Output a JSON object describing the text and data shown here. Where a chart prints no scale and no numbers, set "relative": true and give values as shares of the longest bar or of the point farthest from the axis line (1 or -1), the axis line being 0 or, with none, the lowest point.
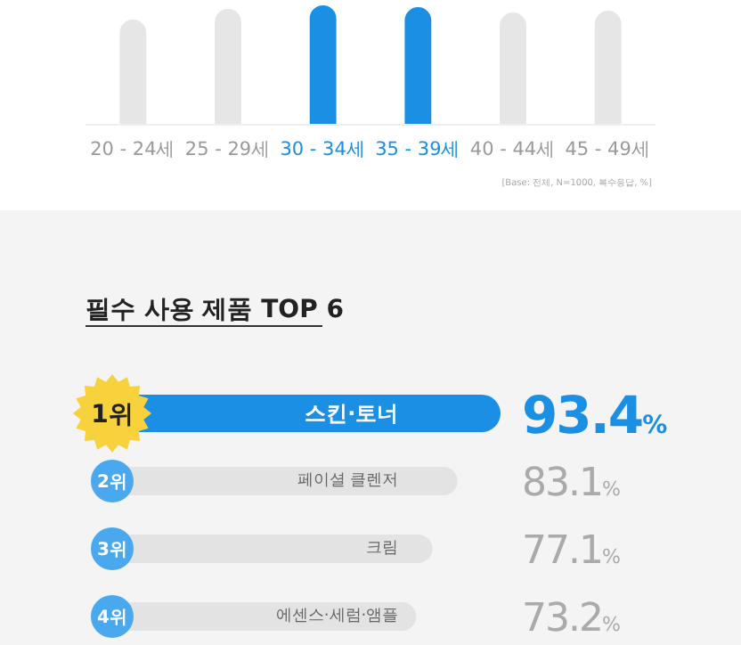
{
  "chart_data": [
    {
      "type": "bar",
      "relative": true,
      "categories": [
        "20 - 24세",
        "25 - 29세",
        "30 - 34세",
        "35 - 39세",
        "40 - 44세",
        "45 - 49세"
      ],
      "values": [
        0.88,
        0.97,
        1,
        0.985,
        0.94,
        0.955
      ],
      "colors": [
        "#e6e6e6",
        "#e6e6e6",
        "#1a8fe3",
        "#1a8fe3",
        "#e6e6e6",
        "#e6e6e6"
      ],
      "annotations": [
        "[Base: 전체, N=1000, 복수응답, %]"
      ]
    },
    {
      "type": "bar",
      "orientation": "horizontal",
      "title": "필수 사용 제품 TOP 6",
      "categories": [
        "스킨·토너",
        "페이셜 클렌저",
        "크림",
        "에센스·세럼·앰플"
      ],
      "values": [
        93.4,
        83.1,
        77.1,
        73.2
      ],
      "colors": [
        "#1a8fe3",
        "#e3e3e3",
        "#e3e3e3",
        "#e3e3e3"
      ],
      "value_labels": [
        "93.4%",
        "83.1%",
        "77.1%",
        "73.2%"
      ],
      "annotations": [
        {
          "text": "1위",
          "y": "스킨·토너"
        },
        {
          "text": "2위",
          "y": "페이셜 클렌저"
        },
        {
          "text": "3위",
          "y": "크림"
        },
        {
          "text": "4위",
          "y": "에센스·세럼·앰플"
        }
      ]
    }
  ]
}
